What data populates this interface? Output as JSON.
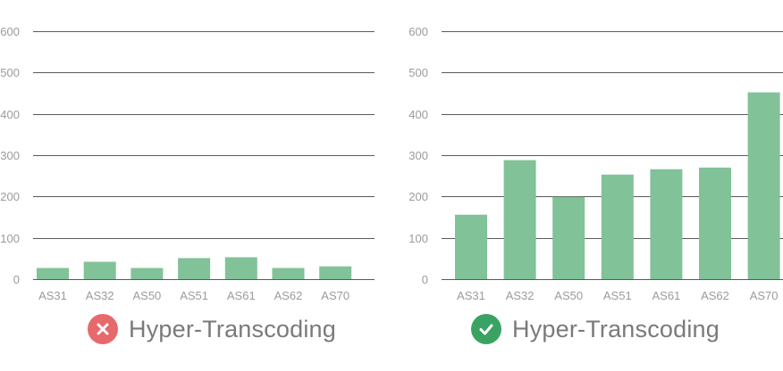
{
  "colors": {
    "bar": "#81c298",
    "fail_badge": "#e8696b",
    "pass_badge": "#3aa364",
    "caption_text": "#7a7a7a",
    "tick_text": "#9b9b9b",
    "gridline": "#5a5a5a"
  },
  "panels": [
    {
      "caption": "Hyper-Transcoding",
      "status_icon": "close-icon",
      "status": "fail"
    },
    {
      "caption": "Hyper-Transcoding",
      "status_icon": "check-icon",
      "status": "pass"
    }
  ],
  "chart_data": [
    {
      "type": "bar",
      "categories": [
        "AS31",
        "AS32",
        "AS50",
        "AS51",
        "AS61",
        "AS62",
        "AS70"
      ],
      "values": [
        27,
        42,
        27,
        51,
        53,
        27,
        31
      ],
      "ylim": [
        0,
        600
      ],
      "yticks": [
        0,
        100,
        200,
        300,
        400,
        500,
        600
      ],
      "grid": true
    },
    {
      "type": "bar",
      "categories": [
        "AS31",
        "AS32",
        "AS50",
        "AS51",
        "AS61",
        "AS62",
        "AS70"
      ],
      "values": [
        156,
        288,
        199,
        253,
        266,
        270,
        452
      ],
      "ylim": [
        0,
        600
      ],
      "yticks": [
        0,
        100,
        200,
        300,
        400,
        500,
        600
      ],
      "grid": true
    }
  ]
}
